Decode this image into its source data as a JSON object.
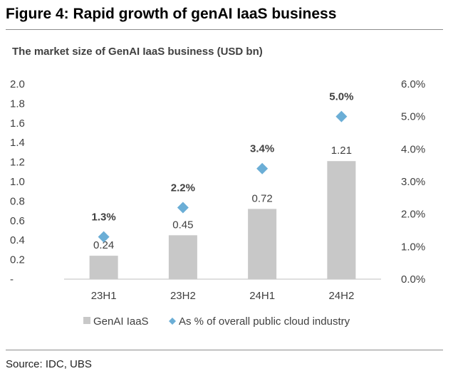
{
  "figure": {
    "title": "Figure 4: Rapid growth of genAI IaaS business",
    "subtitle": "The market size of GenAI IaaS business (USD bn)",
    "source": "Source: IDC, UBS"
  },
  "chart_data": {
    "type": "bar",
    "title": "The market size of GenAI IaaS business (USD bn)",
    "categories": [
      "23H1",
      "23H2",
      "24H1",
      "24H2"
    ],
    "series": [
      {
        "name": "GenAI IaaS",
        "type": "bar",
        "axis": "left",
        "values": [
          0.24,
          0.45,
          0.72,
          1.21
        ],
        "labels": [
          "0.24",
          "0.45",
          "0.72",
          "1.21"
        ],
        "color": "#c8c8c8"
      },
      {
        "name": "As % of overall public cloud industry",
        "type": "scatter",
        "axis": "right",
        "values": [
          1.3,
          2.2,
          3.4,
          5.0
        ],
        "labels": [
          "1.3%",
          "2.2%",
          "3.4%",
          "5.0%"
        ],
        "color": "#6baed6"
      }
    ],
    "y_left": {
      "ylim": [
        0,
        2.0
      ],
      "tick_values": [
        0,
        0.2,
        0.4,
        0.6,
        0.8,
        1.0,
        1.2,
        1.4,
        1.6,
        1.8,
        2.0
      ],
      "tick_labels": [
        "-",
        "0.2",
        "0.4",
        "0.6",
        "0.8",
        "1.0",
        "1.2",
        "1.4",
        "1.6",
        "1.8",
        "2.0"
      ]
    },
    "y_right": {
      "ylim": [
        0,
        6.0
      ],
      "tick_values": [
        0,
        1,
        2,
        3,
        4,
        5,
        6
      ],
      "tick_labels": [
        "0.0%",
        "1.0%",
        "2.0%",
        "3.0%",
        "4.0%",
        "5.0%",
        "6.0%"
      ]
    },
    "grid": false,
    "legend_position": "bottom"
  }
}
